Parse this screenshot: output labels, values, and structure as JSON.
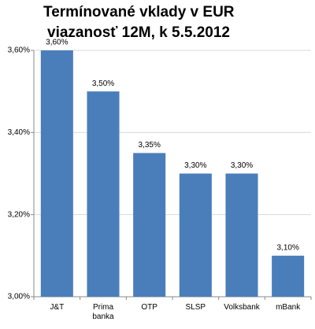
{
  "chart_data": {
    "type": "bar",
    "title": "Termínované vklady v EUR",
    "subtitle": "viazanosť 12M, k 5.5.2012",
    "categories": [
      "J&T",
      "Prima banka",
      "OTP",
      "SLSP",
      "Volksbank",
      "mBank"
    ],
    "values": [
      3.6,
      3.5,
      3.35,
      3.3,
      3.3,
      3.1
    ],
    "value_labels": [
      "3,60%",
      "3,50%",
      "3,35%",
      "3,30%",
      "3,30%",
      "3,10%"
    ],
    "color": "#4a7ebb",
    "ylim": [
      3.0,
      3.6
    ],
    "yticks": [
      {
        "value": 3.0,
        "label": "3,00%"
      },
      {
        "value": 3.2,
        "label": "3,20%"
      },
      {
        "value": 3.4,
        "label": "3,40%"
      },
      {
        "value": 3.6,
        "label": "3,60%"
      }
    ],
    "grid": true
  }
}
